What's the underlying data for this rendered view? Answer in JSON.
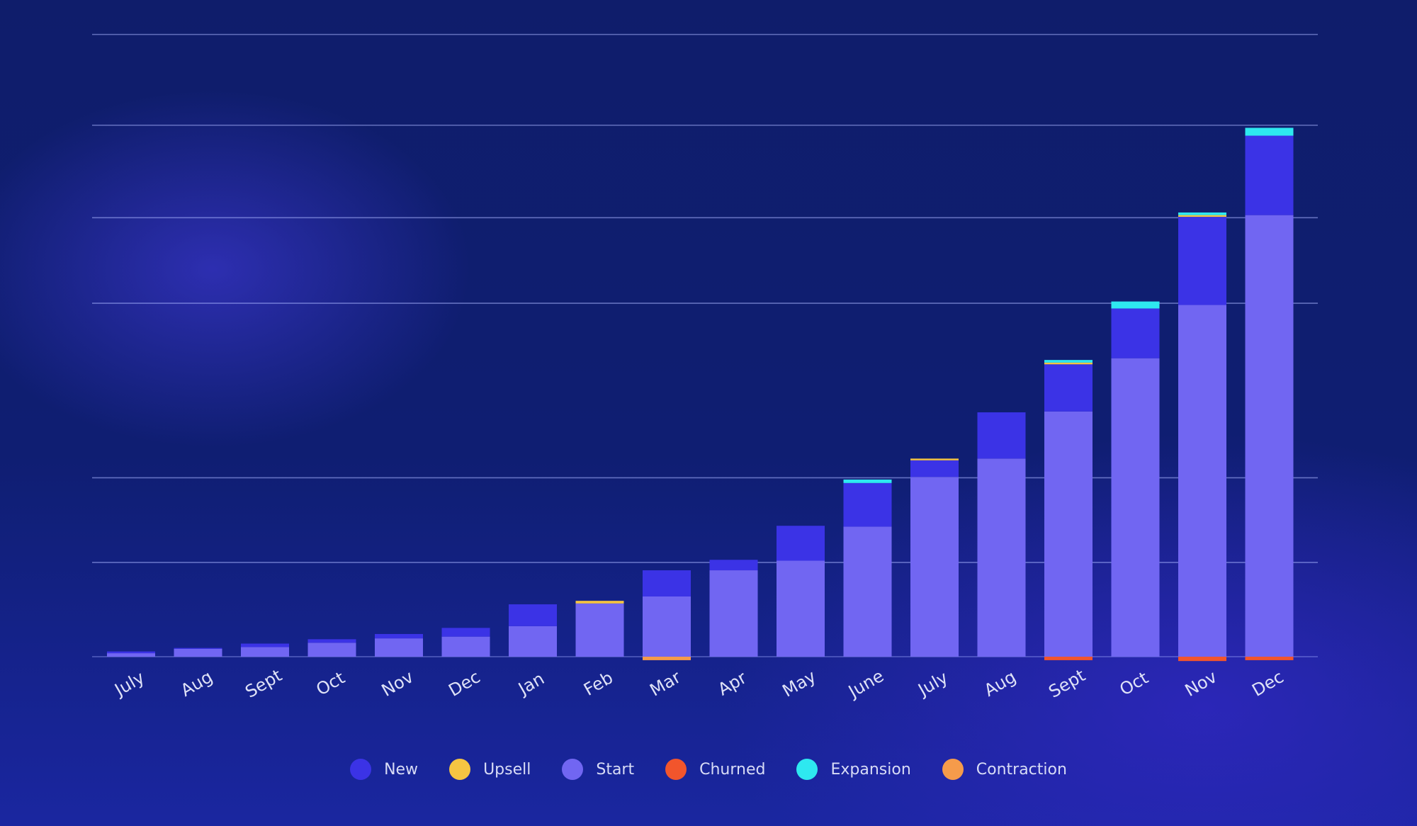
{
  "chart_data": {
    "type": "bar",
    "stacked": true,
    "categories": [
      "July",
      "Aug",
      "Sept",
      "Oct",
      "Nov",
      "Dec",
      "Jan",
      "Feb",
      "Mar",
      "Apr",
      "May",
      "June",
      "July",
      "Aug",
      "Sept",
      "Oct",
      "Nov",
      "Dec"
    ],
    "series": [
      {
        "name": "Start",
        "color": "#7166f2",
        "values": [
          0.4,
          0.9,
          1.1,
          1.6,
          2.1,
          2.3,
          3.5,
          6.1,
          6.9,
          9.9,
          11.0,
          14.9,
          20.6,
          22.7,
          28.1,
          34.2,
          40.3,
          50.6
        ]
      },
      {
        "name": "New",
        "color": "#3b33e6",
        "values": [
          0.2,
          0.1,
          0.4,
          0.4,
          0.5,
          1.0,
          2.5,
          0.0,
          3.0,
          1.2,
          4.0,
          5.0,
          1.9,
          5.3,
          5.4,
          5.7,
          10.1,
          9.1
        ]
      },
      {
        "name": "Upsell",
        "color": "#f5c542",
        "values": [
          0,
          0,
          0,
          0,
          0,
          0,
          0,
          0.3,
          0,
          0,
          0,
          0,
          0.2,
          0,
          0.2,
          0,
          0.2,
          0
        ]
      },
      {
        "name": "Expansion",
        "color": "#2ee8f0",
        "values": [
          0,
          0,
          0,
          0,
          0,
          0,
          0,
          0,
          0,
          0,
          0,
          0.4,
          0,
          0,
          0.3,
          0.8,
          0.3,
          0.9
        ]
      },
      {
        "name": "Churned",
        "color": "#f2552c",
        "values": [
          0,
          0,
          0,
          0,
          0,
          0,
          0,
          0,
          0,
          0,
          0,
          0,
          0,
          0,
          -0.4,
          0,
          -0.5,
          -0.4
        ]
      },
      {
        "name": "Contraction",
        "color": "#f59b4b",
        "values": [
          0,
          0,
          0,
          0,
          0,
          0,
          0,
          0,
          -0.4,
          0,
          0,
          0,
          0,
          0,
          0,
          0,
          0,
          0
        ]
      }
    ],
    "ylim": [
      0,
      72
    ],
    "grid": true,
    "gridlines": [
      0,
      10.8,
      20.5,
      40.5,
      50.3,
      60.9,
      71.3
    ],
    "legend_position": "bottom"
  },
  "legend": [
    {
      "label": "New",
      "color": "#3b33e6"
    },
    {
      "label": "Upsell",
      "color": "#f5c542"
    },
    {
      "label": "Start",
      "color": "#7166f2"
    },
    {
      "label": "Churned",
      "color": "#f2552c"
    },
    {
      "label": "Expansion",
      "color": "#2ee8f0"
    },
    {
      "label": "Contraction",
      "color": "#f59b4b"
    }
  ]
}
